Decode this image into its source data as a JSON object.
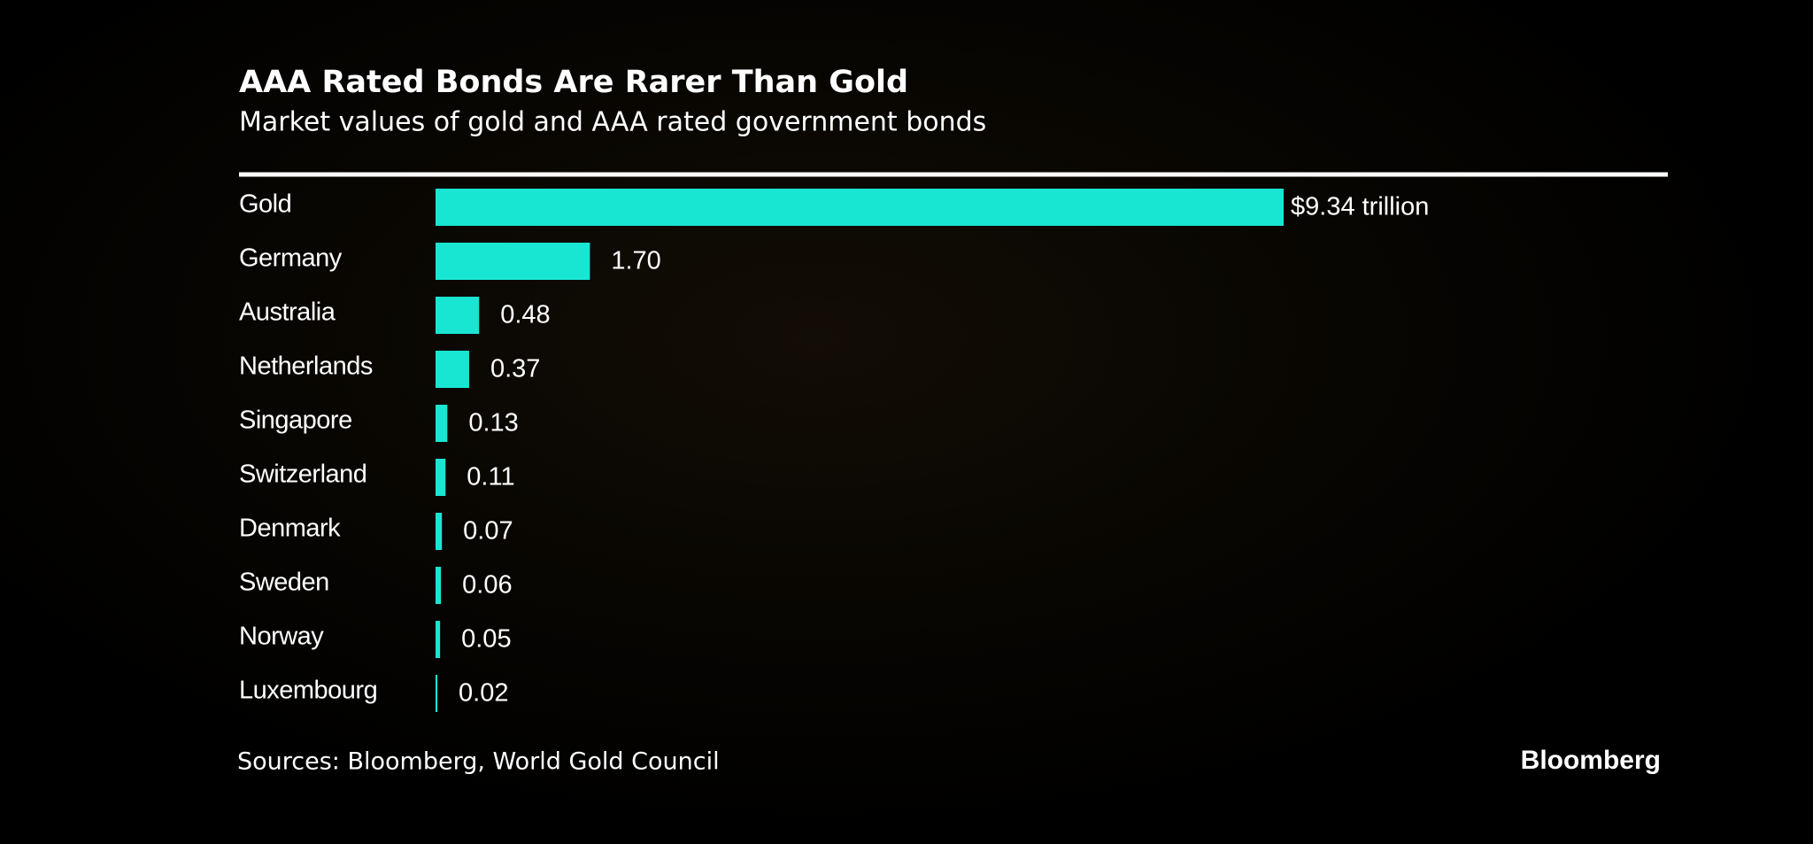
{
  "chart_data": {
    "type": "hbar",
    "title": "AAA Rated Bonds Are Rarer Than Gold",
    "subtitle": "Market values of gold and AAA rated government bonds",
    "categories": [
      "Gold",
      "Germany",
      "Australia",
      "Netherlands",
      "Singapore",
      "Switzerland",
      "Denmark",
      "Sweden",
      "Norway",
      "Luxembourg"
    ],
    "values": [
      9.34,
      1.7,
      0.48,
      0.37,
      0.13,
      0.11,
      0.07,
      0.06,
      0.05,
      0.02
    ],
    "value_labels": [
      "$9.34 trillion",
      "1.70",
      "0.48",
      "0.37",
      "0.13",
      "0.11",
      "0.07",
      "0.06",
      "0.05",
      "0.02"
    ],
    "color": "#19e6d2",
    "source": "Sources: Bloomberg, World Gold Council",
    "brand": "Bloomberg"
  }
}
